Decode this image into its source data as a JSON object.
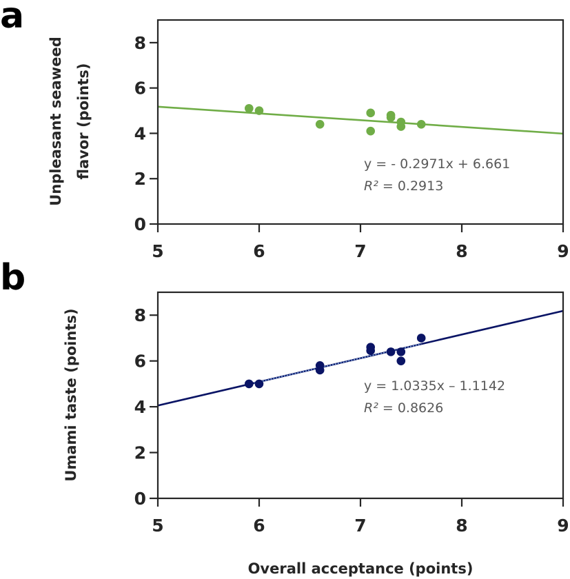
{
  "figure": {
    "x_axis_title": "Overall acceptance (points)"
  },
  "chart_data": [
    {
      "type": "scatter",
      "panel": "a",
      "title": "",
      "xlabel": "",
      "ylabel": "Unpleasant seaweed flavor (points)",
      "ylabel_lines": [
        "Unpleasant seaweed",
        "flavor (points)"
      ],
      "xlim": [
        5,
        9
      ],
      "ylim": [
        0,
        9
      ],
      "xticks": [
        5,
        6,
        7,
        8,
        9
      ],
      "yticks": [
        0,
        2,
        4,
        6,
        8
      ],
      "grid": false,
      "color": "#70ad47",
      "points": {
        "x": [
          5.9,
          6.0,
          6.6,
          7.1,
          7.1,
          7.3,
          7.3,
          7.4,
          7.4,
          7.6
        ],
        "y": [
          5.1,
          5.0,
          4.4,
          4.9,
          4.1,
          4.8,
          4.7,
          4.5,
          4.3,
          4.4
        ]
      },
      "trendline": {
        "slope": -0.2971,
        "intercept": 6.661,
        "r2": 0.2913,
        "style": "solid"
      },
      "annotation": {
        "equation": "y = - 0.2971x + 6.661",
        "r2_label": "R²",
        "r2_value": " = 0.2913"
      }
    },
    {
      "type": "scatter",
      "panel": "b",
      "title": "",
      "xlabel": "Overall acceptance (points)",
      "ylabel": "Umami taste (points)",
      "ylabel_lines": [
        "Umami taste (points)"
      ],
      "xlim": [
        5,
        9
      ],
      "ylim": [
        0,
        9
      ],
      "xticks": [
        5,
        6,
        7,
        8,
        9
      ],
      "yticks": [
        0,
        2,
        4,
        6,
        8
      ],
      "grid": false,
      "color": "#0a1465",
      "points": {
        "x": [
          5.9,
          6.0,
          6.6,
          6.6,
          7.1,
          7.1,
          7.3,
          7.4,
          7.4,
          7.6
        ],
        "y": [
          5.0,
          5.0,
          5.8,
          5.6,
          6.6,
          6.45,
          6.4,
          6.4,
          6.0,
          7.0
        ]
      },
      "trendline": {
        "slope": 1.0335,
        "intercept": -1.1142,
        "r2": 0.8626,
        "style": "solid",
        "overlay_color": "#7fa8e0"
      },
      "annotation": {
        "equation": "y = 1.0335x – 1.1142",
        "r2_label": "R²",
        "r2_value": " = 0.8626"
      }
    }
  ]
}
